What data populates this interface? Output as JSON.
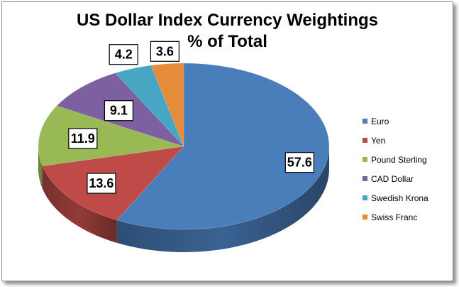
{
  "chart_data": {
    "type": "pie",
    "title": "US Dollar Index Currency Weightings",
    "subtitle": "% of Total",
    "categories": [
      "Euro",
      "Yen",
      "Pound Sterling",
      "CAD Dollar",
      "Swedish Krona",
      "Swiss Franc"
    ],
    "values": [
      57.6,
      13.6,
      11.9,
      9.1,
      4.2,
      3.6
    ],
    "colors": [
      "#4a7ebb",
      "#be4b48",
      "#98b954",
      "#7d60a0",
      "#46a6c3",
      "#e48c3a"
    ],
    "legend": "right",
    "style": "3d"
  }
}
